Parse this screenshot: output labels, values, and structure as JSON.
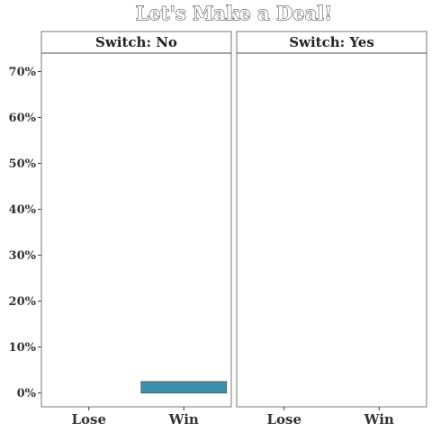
{
  "chart_data": {
    "type": "bar",
    "title": "Let's Make a Deal!",
    "xlabel": "",
    "ylabel": "",
    "categories": [
      "Lose",
      "Win"
    ],
    "ylim": [
      -0.03,
      0.74
    ],
    "yticks": [
      0,
      0.1,
      0.2,
      0.3,
      0.4,
      0.5,
      0.6,
      0.7
    ],
    "ytick_labels": [
      "0%",
      "10%",
      "20%",
      "30%",
      "40%",
      "50%",
      "60%",
      "70%"
    ],
    "grid": false,
    "legend": "none",
    "bar_color": "#3a8fad",
    "bar_edge_color": "#555555",
    "facets": [
      {
        "label": "Switch: No",
        "values": [
          0,
          0.025
        ]
      },
      {
        "label": "Switch: Yes",
        "values": [
          0,
          0
        ]
      }
    ]
  }
}
